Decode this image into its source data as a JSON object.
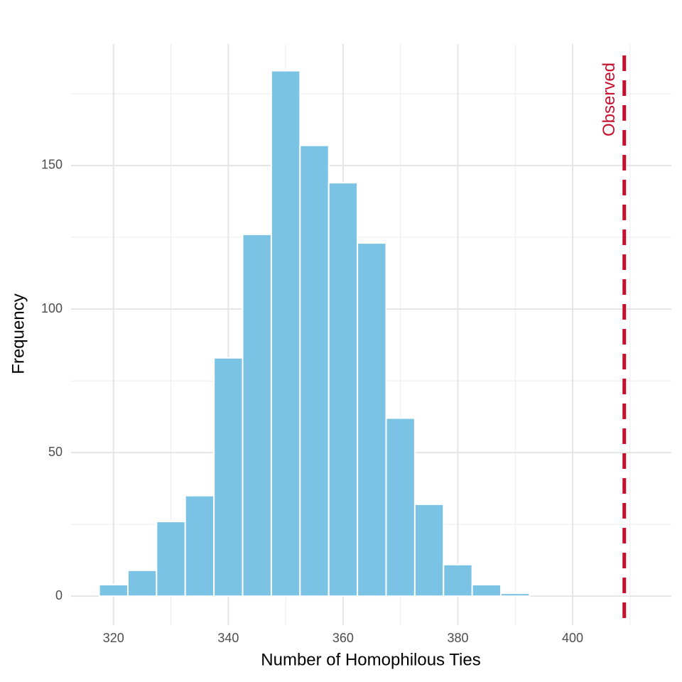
{
  "chart_data": {
    "type": "histogram",
    "x_label": "Number of Homophilous Ties",
    "y_label": "Frequency",
    "bins": [
      317.5,
      322.5,
      327.5,
      332.5,
      337.5,
      342.5,
      347.5,
      352.5,
      357.5,
      362.5,
      367.5,
      372.5,
      377.5,
      382.5,
      387.5,
      392.5,
      397.5,
      402.5,
      407.5,
      412.5
    ],
    "values": [
      4,
      9,
      26,
      35,
      83,
      126,
      183,
      157,
      144,
      123,
      62,
      32,
      11,
      4,
      1,
      0,
      0,
      0,
      0
    ],
    "color": "#7ac3e4",
    "xlim": [
      312.6,
      417.2
    ],
    "xticks": [
      320,
      340,
      360,
      380,
      400
    ],
    "x_minor_grid": [
      330,
      350,
      370,
      390,
      410
    ],
    "ylim": [
      -10.1,
      192.3
    ],
    "yticks": [
      0,
      50,
      100,
      150
    ],
    "y_minor_grid": [
      25,
      75,
      125,
      175
    ],
    "grid": true,
    "reference_line": {
      "value": 409,
      "label": "Observed",
      "color": "#c8102e"
    }
  }
}
